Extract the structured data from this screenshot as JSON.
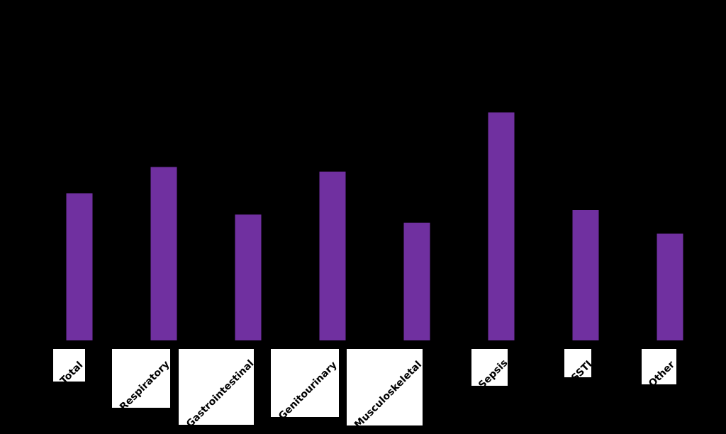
{
  "chart_data": {
    "type": "bar",
    "categories": [
      "Total",
      "Respiratory",
      "Gastrointestinal",
      "Genitourinary",
      "Musculoskeletal",
      "Sepsis",
      "SSTI",
      "Other"
    ],
    "values": [
      31,
      36.5,
      26.5,
      35.5,
      24.8,
      48,
      27.5,
      22.5
    ],
    "ylim": [
      0,
      60
    ],
    "grid": false,
    "legend": "none",
    "colors": {
      "bar": "#7030a0",
      "background": "#000000",
      "label_box": "#ffffff",
      "label_text": "#000000"
    }
  }
}
